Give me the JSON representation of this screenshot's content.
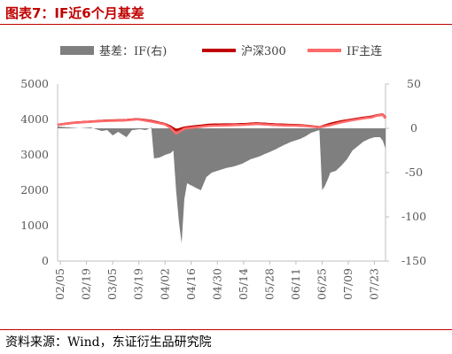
{
  "header": {
    "title": "图表7：IF近6个月基差"
  },
  "footer": {
    "source": "资料来源：Wind，东证衍生品研究院"
  },
  "colors": {
    "title": "#c00000",
    "basis": "#7f7f7f",
    "index": "#c00000",
    "future": "#ff6a6a",
    "rule": "#c00000"
  },
  "chart_data": {
    "type": "line",
    "y_left": {
      "ylim": [
        0,
        5000
      ],
      "ticks": [
        "0",
        "1000",
        "2000",
        "3000",
        "4000",
        "5000"
      ]
    },
    "y_right": {
      "ylim": [
        -150,
        50
      ],
      "ticks": [
        "50",
        "0",
        "-50",
        "-100",
        "-150"
      ]
    },
    "x_tick_labels": [
      "02/05",
      "02/19",
      "03/05",
      "03/19",
      "04/02",
      "04/16",
      "04/30",
      "05/14",
      "05/28",
      "06/11",
      "06/25",
      "07/09",
      "07/23"
    ],
    "legend": [
      "基差：IF(右)",
      "沪深300",
      "IF主连"
    ],
    "n_points": 120,
    "basis_points": [
      [
        0,
        2
      ],
      [
        4,
        1
      ],
      [
        8,
        0
      ],
      [
        12,
        1
      ],
      [
        16,
        -3
      ],
      [
        18,
        -2
      ],
      [
        20,
        -8
      ],
      [
        22,
        -4
      ],
      [
        25,
        -10
      ],
      [
        27,
        -2
      ],
      [
        30,
        -1
      ],
      [
        32,
        -2
      ],
      [
        34,
        1
      ],
      [
        35,
        -34
      ],
      [
        37,
        -33
      ],
      [
        39,
        -30
      ],
      [
        41,
        -28
      ],
      [
        42,
        -25
      ],
      [
        43,
        -70
      ],
      [
        44,
        -105
      ],
      [
        45,
        -130
      ],
      [
        46,
        -80
      ],
      [
        47,
        -62
      ],
      [
        50,
        -67
      ],
      [
        52,
        -70
      ],
      [
        54,
        -55
      ],
      [
        56,
        -50
      ],
      [
        58,
        -48
      ],
      [
        61,
        -45
      ],
      [
        64,
        -43
      ],
      [
        67,
        -40
      ],
      [
        70,
        -35
      ],
      [
        73,
        -32
      ],
      [
        76,
        -28
      ],
      [
        79,
        -24
      ],
      [
        82,
        -19
      ],
      [
        85,
        -15
      ],
      [
        88,
        -12
      ],
      [
        90,
        -9
      ],
      [
        92,
        -5
      ],
      [
        94,
        -3
      ],
      [
        95,
        -2
      ],
      [
        96,
        -70
      ],
      [
        97,
        -65
      ],
      [
        98,
        -58
      ],
      [
        99,
        -50
      ],
      [
        101,
        -48
      ],
      [
        103,
        -42
      ],
      [
        105,
        -35
      ],
      [
        107,
        -25
      ],
      [
        109,
        -20
      ],
      [
        111,
        -15
      ],
      [
        113,
        -12
      ],
      [
        115,
        -10
      ],
      [
        117,
        -10
      ],
      [
        118,
        -14
      ],
      [
        119,
        -23
      ]
    ],
    "index_points": [
      [
        0,
        3850
      ],
      [
        6,
        3910
      ],
      [
        12,
        3940
      ],
      [
        18,
        3970
      ],
      [
        24,
        3980
      ],
      [
        29,
        4010
      ],
      [
        34,
        3960
      ],
      [
        39,
        3870
      ],
      [
        41,
        3800
      ],
      [
        43,
        3700
      ],
      [
        46,
        3770
      ],
      [
        50,
        3810
      ],
      [
        55,
        3850
      ],
      [
        60,
        3860
      ],
      [
        64,
        3860
      ],
      [
        68,
        3870
      ],
      [
        72,
        3890
      ],
      [
        75,
        3880
      ],
      [
        79,
        3860
      ],
      [
        83,
        3850
      ],
      [
        87,
        3840
      ],
      [
        91,
        3820
      ],
      [
        95,
        3780
      ],
      [
        99,
        3880
      ],
      [
        103,
        3950
      ],
      [
        107,
        4000
      ],
      [
        111,
        4050
      ],
      [
        114,
        4080
      ],
      [
        116,
        4120
      ],
      [
        118,
        4140
      ],
      [
        119,
        4050
      ]
    ],
    "future_points": [
      [
        0,
        3850
      ],
      [
        6,
        3905
      ],
      [
        12,
        3935
      ],
      [
        18,
        3960
      ],
      [
        24,
        3970
      ],
      [
        29,
        4005
      ],
      [
        34,
        3940
      ],
      [
        39,
        3860
      ],
      [
        41,
        3760
      ],
      [
        43,
        3600
      ],
      [
        46,
        3740
      ],
      [
        50,
        3780
      ],
      [
        55,
        3820
      ],
      [
        60,
        3830
      ],
      [
        64,
        3840
      ],
      [
        68,
        3850
      ],
      [
        72,
        3870
      ],
      [
        75,
        3860
      ],
      [
        79,
        3840
      ],
      [
        83,
        3830
      ],
      [
        87,
        3825
      ],
      [
        91,
        3810
      ],
      [
        95,
        3775
      ],
      [
        99,
        3840
      ],
      [
        103,
        3920
      ],
      [
        107,
        3980
      ],
      [
        111,
        4030
      ],
      [
        114,
        4060
      ],
      [
        116,
        4110
      ],
      [
        118,
        4130
      ],
      [
        119,
        4030
      ]
    ]
  }
}
